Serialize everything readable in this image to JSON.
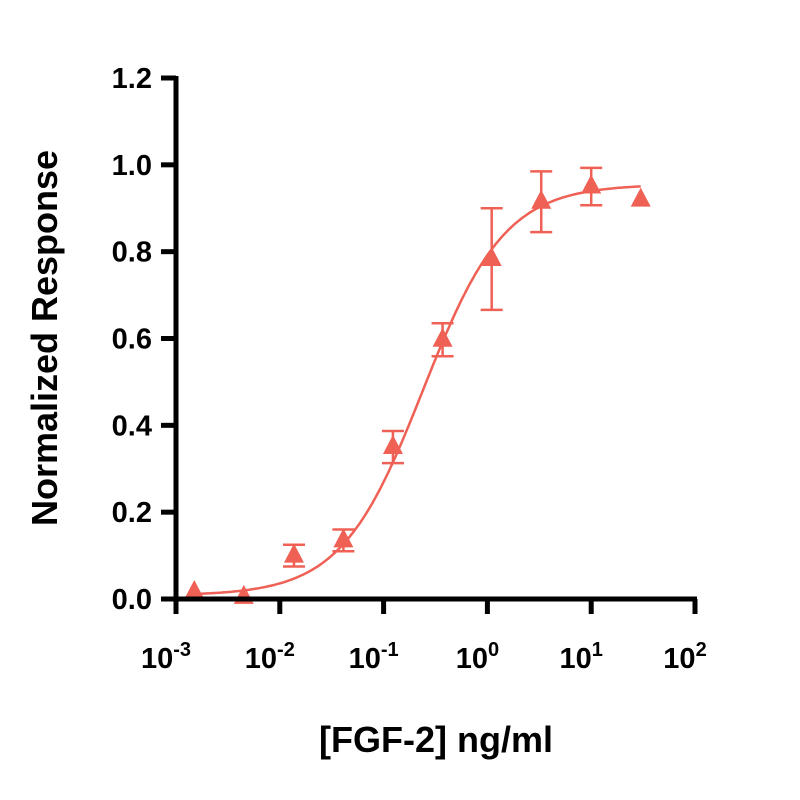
{
  "chart_data": {
    "type": "scatter",
    "xlabel": "[FGF-2] ng/ml",
    "ylabel": "Normalized Response",
    "x_scale": "log",
    "xlim": [
      0.001,
      100
    ],
    "ylim": [
      0,
      1.2
    ],
    "x_ticks": [
      {
        "base": "10",
        "exp": "-3"
      },
      {
        "base": "10",
        "exp": "-2"
      },
      {
        "base": "10",
        "exp": "-1"
      },
      {
        "base": "10",
        "exp": "0"
      },
      {
        "base": "10",
        "exp": "1"
      },
      {
        "base": "10",
        "exp": "2"
      }
    ],
    "y_ticks": [
      "0.0",
      "0.2",
      "0.4",
      "0.6",
      "0.8",
      "1.0",
      "1.2"
    ],
    "grid": false,
    "color": "#ef6055",
    "marker": "triangle",
    "points": [
      {
        "x": 0.0015,
        "y": 0.016,
        "err": null
      },
      {
        "x": 0.0045,
        "y": 0.005,
        "err": null
      },
      {
        "x": 0.0137,
        "y": 0.1,
        "err": 0.025
      },
      {
        "x": 0.041,
        "y": 0.135,
        "err": 0.025
      },
      {
        "x": 0.123,
        "y": 0.35,
        "err": 0.037
      },
      {
        "x": 0.37,
        "y": 0.597,
        "err": 0.038
      },
      {
        "x": 1.1,
        "y": 0.783,
        "err": 0.117
      },
      {
        "x": 3.3,
        "y": 0.915,
        "err": 0.07
      },
      {
        "x": 10,
        "y": 0.95,
        "err": 0.043
      },
      {
        "x": 30,
        "y": 0.92,
        "err": null
      }
    ],
    "fit": {
      "model": "4PL",
      "bottom": 0.008,
      "top": 0.955,
      "ec50": 0.24,
      "hill": 1.1,
      "x_range": [
        0.0015,
        30
      ]
    }
  }
}
